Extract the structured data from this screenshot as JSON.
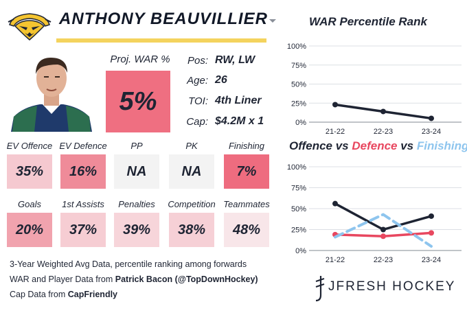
{
  "player": {
    "name": "ANTHONY BEAUVILLIER",
    "proj_war_label": "Proj. WAR %",
    "proj_war_value": "5%",
    "proj_war_color": "#ef6f81"
  },
  "info": [
    {
      "key": "Pos:",
      "value": "RW, LW"
    },
    {
      "key": "Age:",
      "value": "26"
    },
    {
      "key": "TOI:",
      "value": "4th Liner"
    },
    {
      "key": "Cap:",
      "value": "$4.2M x 1"
    }
  ],
  "stats": [
    {
      "label": "EV Offence",
      "value": "35%",
      "color": "#f5c9d0"
    },
    {
      "label": "EV Defence",
      "value": "16%",
      "color": "#ef8b99"
    },
    {
      "label": "PP",
      "value": "NA",
      "color": "#f3f3f3"
    },
    {
      "label": "PK",
      "value": "NA",
      "color": "#f3f3f3"
    },
    {
      "label": "Finishing",
      "value": "7%",
      "color": "#ee6c7f"
    },
    {
      "label": "Goals",
      "value": "20%",
      "color": "#f1a3ae"
    },
    {
      "label": "1st Assists",
      "value": "37%",
      "color": "#f6cdd3"
    },
    {
      "label": "Penalties",
      "value": "39%",
      "color": "#f7d5da"
    },
    {
      "label": "Competition",
      "value": "38%",
      "color": "#f6d0d6"
    },
    {
      "label": "Teammates",
      "value": "48%",
      "color": "#f8e6e9"
    }
  ],
  "footer": {
    "line1": "3-Year Weighted Avg Data, percentile ranking among forwards",
    "line2_prefix": "WAR and Player Data from ",
    "line2_bold": "Patrick Bacon (@TopDownHockey)",
    "line3_prefix": "Cap Data from ",
    "line3_bold": "CapFriendly"
  },
  "brand": "JFRESH HOCKEY",
  "colors": {
    "navy": "#1e2433",
    "red": "#e8475f",
    "blue": "#8ec5ee",
    "accent_yellow": "#f4d35e"
  },
  "chart_titles": {
    "war": "WAR Percentile Rank",
    "ovd_offence": "Offence",
    "ovd_vs1": " vs ",
    "ovd_defence": "Defence",
    "ovd_vs2": " vs ",
    "ovd_finishing": "Finishing"
  },
  "chart_data": [
    {
      "type": "line",
      "title": "WAR Percentile Rank",
      "categories": [
        "21-22",
        "22-23",
        "23-24"
      ],
      "yticks": [
        "0%",
        "25%",
        "50%",
        "75%",
        "100%"
      ],
      "ylim": [
        0,
        100
      ],
      "series": [
        {
          "values": [
            23,
            14,
            5
          ],
          "color": "#1e2433",
          "style": "solid"
        }
      ]
    },
    {
      "type": "line",
      "title": "Offence vs Defence vs Finishing",
      "categories": [
        "21-22",
        "22-23",
        "23-24"
      ],
      "yticks": [
        "0%",
        "25%",
        "50%",
        "75%",
        "100%"
      ],
      "ylim": [
        0,
        100
      ],
      "series": [
        {
          "name": "Offence",
          "values": [
            56,
            25,
            41
          ],
          "color": "#1e2433",
          "style": "solid"
        },
        {
          "name": "Defence",
          "values": [
            19,
            17,
            21
          ],
          "color": "#e8475f",
          "style": "solid"
        },
        {
          "name": "Finishing",
          "values": [
            16,
            43,
            5
          ],
          "color": "#8ec5ee",
          "style": "dashed"
        }
      ]
    }
  ]
}
